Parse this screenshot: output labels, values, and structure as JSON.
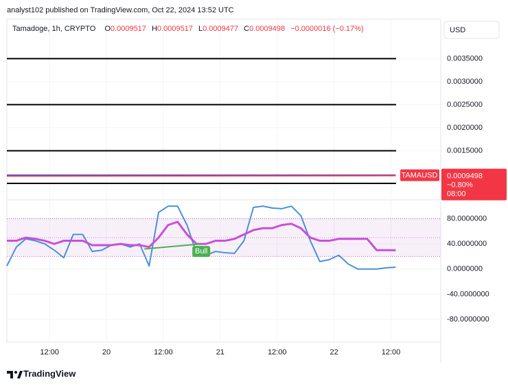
{
  "header": "analyst102 published on TradingView.com, Oct 22, 2024 13:52 UTC",
  "legend": {
    "name": "Tamadoge, 1h, CRYPTO",
    "items": [
      {
        "key": "O",
        "value": "0.0009517"
      },
      {
        "key": "H",
        "value": "0.0009517"
      },
      {
        "key": "L",
        "value": "0.0009477"
      },
      {
        "key": "C",
        "value": "0.0009498"
      }
    ],
    "change": "−0.0000016 (−0.17%)"
  },
  "currency": "USD",
  "price_label": {
    "symbol": "TAMAUSD",
    "price": "0.0009498",
    "change": "−0.80%",
    "time": "08:00"
  },
  "footer": "TradingView",
  "chart_data": [
    {
      "type": "line",
      "xlim": [
        0,
        91.5
      ],
      "ylim": [
        0.000447,
        0.004357
      ],
      "yticks": [
        {
          "value": 0.0035,
          "label": "0.0035000"
        },
        {
          "value": 0.003,
          "label": "0.0030000"
        },
        {
          "value": 0.0025,
          "label": "0.0025000"
        },
        {
          "value": 0.002,
          "label": "0.0020000"
        },
        {
          "value": 0.0015,
          "label": "0.0015000"
        }
      ],
      "hlines": [
        0.0035,
        0.0025,
        0.0015,
        0.00079
      ],
      "hline_color": "#000000",
      "x": [
        0,
        82
      ],
      "series": [
        {
          "color": "#2962ff",
          "values": [
            0.00097,
            0.00097
          ]
        },
        {
          "color": "#f23645",
          "values": [
            0.00095,
            0.00096
          ]
        }
      ]
    },
    {
      "type": "line",
      "xlim": [
        0,
        91.5
      ],
      "ylim": [
        -116,
        110
      ],
      "yticks": [
        {
          "value": 80,
          "label": "80.0000000"
        },
        {
          "value": 40,
          "label": "40.0000000"
        },
        {
          "value": 0,
          "label": "0.0000000"
        },
        {
          "value": -40,
          "label": "-40.0000000"
        },
        {
          "value": -80,
          "label": "-80.0000000"
        }
      ],
      "xticks": [
        {
          "value": 9,
          "label": "12:00"
        },
        {
          "value": 21,
          "label": "20"
        },
        {
          "value": 33,
          "label": "12:00"
        },
        {
          "value": 45,
          "label": "21"
        },
        {
          "value": 57,
          "label": "12:00"
        },
        {
          "value": 69,
          "label": "22"
        },
        {
          "value": 81,
          "label": "12:00"
        }
      ],
      "band": [
        20,
        80
      ],
      "band_mid": 50,
      "x": [
        0,
        2,
        4,
        6,
        8,
        10,
        12,
        14,
        16,
        18,
        20,
        22,
        24,
        26,
        28,
        30,
        32,
        34,
        36,
        38,
        40,
        42,
        44,
        46,
        48,
        50,
        52,
        54,
        56,
        58,
        60,
        62,
        64,
        66,
        68,
        70,
        72,
        74,
        76,
        78,
        80,
        82
      ],
      "series": [
        {
          "color": "#4a90d9",
          "values": [
            5,
            35,
            48,
            45,
            40,
            30,
            18,
            55,
            55,
            28,
            30,
            38,
            40,
            35,
            40,
            5,
            90,
            100,
            100,
            70,
            25,
            22,
            28,
            26,
            25,
            45,
            98,
            100,
            97,
            96,
            100,
            85,
            45,
            12,
            15,
            22,
            8,
            0,
            0,
            0,
            2,
            3
          ]
        },
        {
          "color": "#c94fd8",
          "values": [
            45,
            45,
            50,
            48,
            45,
            40,
            45,
            45,
            45,
            38,
            38,
            38,
            40,
            38,
            38,
            35,
            50,
            70,
            75,
            55,
            40,
            40,
            45,
            45,
            48,
            55,
            62,
            65,
            65,
            70,
            72,
            65,
            50,
            45,
            45,
            48,
            48,
            48,
            48,
            30,
            30,
            30
          ]
        }
      ],
      "annotation": {
        "text": "Bull",
        "x": [
          29,
          41
        ],
        "values": [
          32,
          40
        ],
        "color": "#4caf50"
      }
    }
  ]
}
